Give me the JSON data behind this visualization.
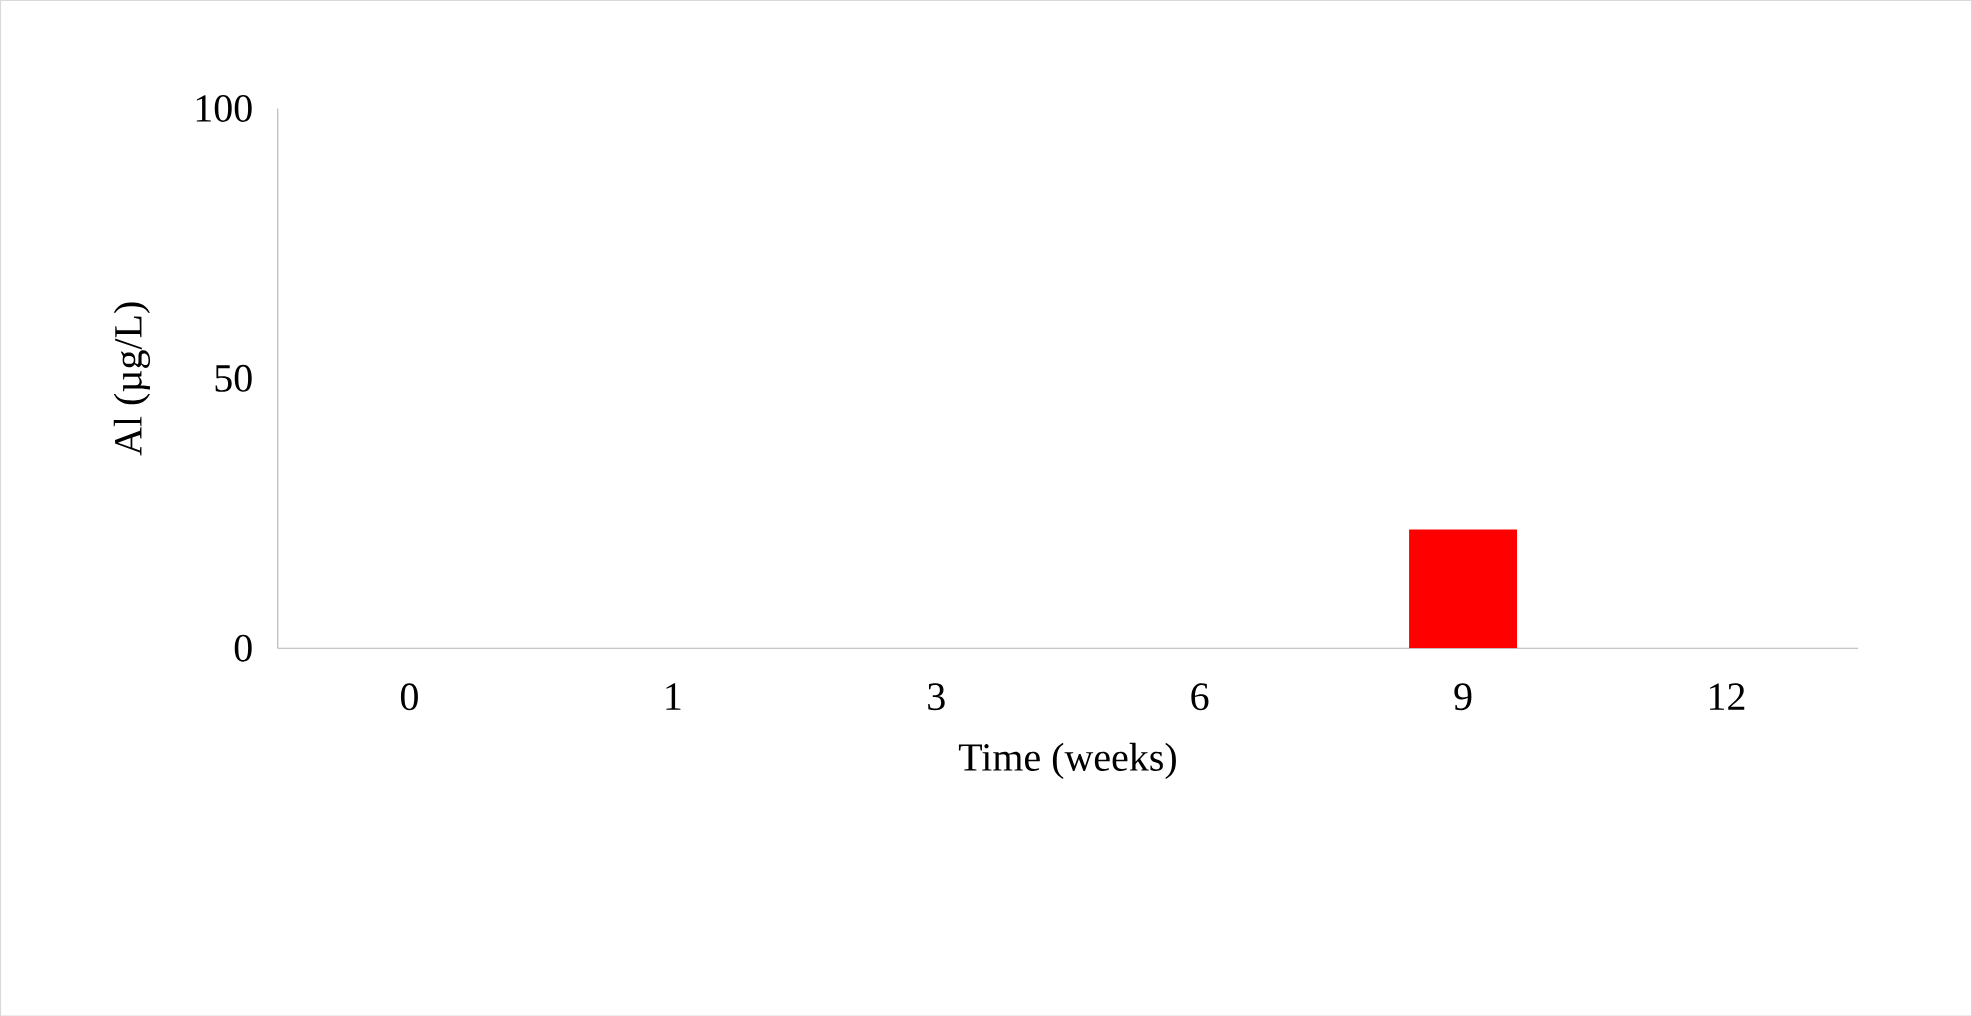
{
  "chart_data": {
    "type": "bar",
    "xlabel": "Time (weeks)",
    "ylabel": "Al (µg/L)",
    "categories": [
      "0",
      "1",
      "3",
      "6",
      "9",
      "12"
    ],
    "series": [
      {
        "color": "#ff0000",
        "values": [
          0,
          0,
          0,
          0,
          22,
          0
        ]
      }
    ],
    "ylim": [
      0,
      100
    ],
    "yticks": [
      0,
      50,
      100
    ],
    "grid": false
  }
}
